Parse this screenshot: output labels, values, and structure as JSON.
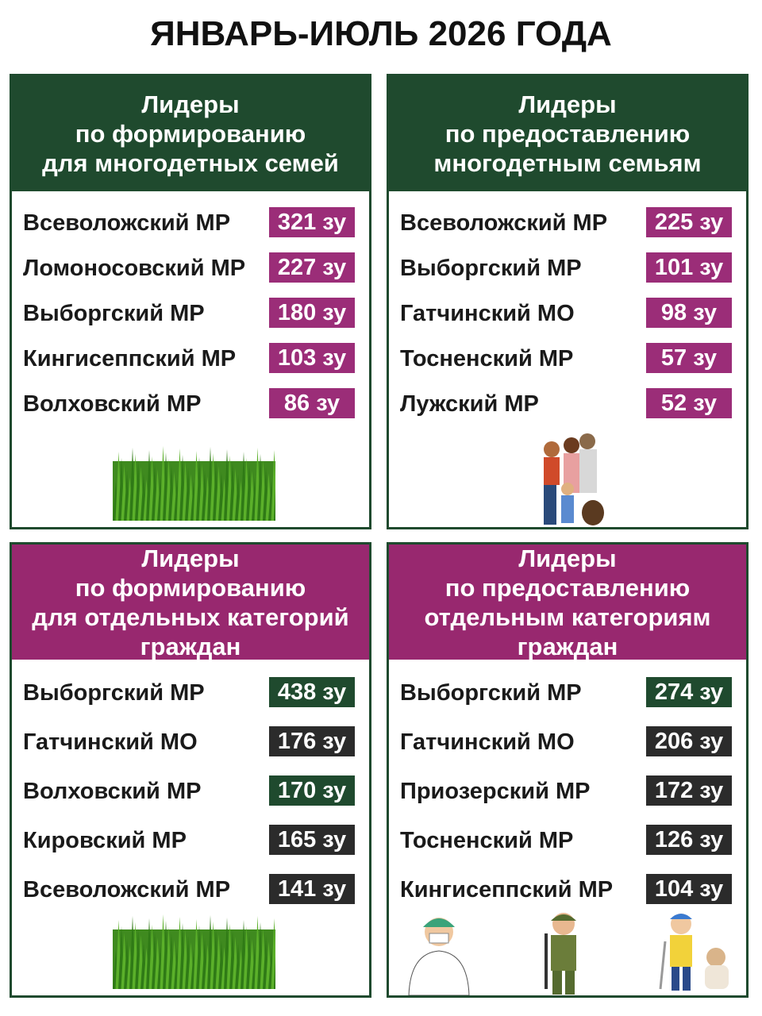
{
  "title": "ЯНВАРЬ-ИЮЛЬ 2026 ГОДА",
  "panels": [
    {
      "header": [
        "Лидеры",
        "по формированию",
        "для многодетных семей"
      ],
      "header_color": "#1f4a2e",
      "rows": [
        {
          "name": "Всеволожский МР",
          "value": "321 зу",
          "color": "#9b2d78"
        },
        {
          "name": "Ломоносовский МР",
          "value": "227 зу",
          "color": "#9b2d78"
        },
        {
          "name": "Выборгский МР",
          "value": "180 зу",
          "color": "#9b2d78"
        },
        {
          "name": "Кингисеппский МР",
          "value": "103 зу",
          "color": "#9b2d78"
        },
        {
          "name": "Волховский МР",
          "value": "86 зу",
          "color": "#9b2d78"
        }
      ]
    },
    {
      "header": [
        "Лидеры",
        "по предоставлению",
        "многодетным семьям"
      ],
      "header_color": "#1f4a2e",
      "rows": [
        {
          "name": "Всеволожский МР",
          "value": "225 зу",
          "color": "#9b2d78"
        },
        {
          "name": "Выборгский МР",
          "value": "101 зу",
          "color": "#9b2d78"
        },
        {
          "name": "Гатчинский МО",
          "value": "98 зу",
          "color": "#9b2d78"
        },
        {
          "name": "Тосненский МР",
          "value": "57 зу",
          "color": "#9b2d78"
        },
        {
          "name": "Лужский МР",
          "value": "52 зу",
          "color": "#9b2d78"
        }
      ]
    },
    {
      "header": [
        "Лидеры",
        "по формированию",
        "для отдельных категорий",
        "граждан"
      ],
      "header_color": "#98286f",
      "rows": [
        {
          "name": "Выборгский МР",
          "value": "438 зу",
          "color": "#1f4a2e"
        },
        {
          "name": "Гатчинский МО",
          "value": "176 зу",
          "color": "#2b2b2b"
        },
        {
          "name": "Волховский МР",
          "value": "170 зу",
          "color": "#1f4a2e"
        },
        {
          "name": "Кировский МР",
          "value": "165 зу",
          "color": "#2b2b2b"
        },
        {
          "name": "Всеволожский МР",
          "value": "141 зу",
          "color": "#2b2b2b"
        }
      ]
    },
    {
      "header": [
        "Лидеры",
        "по предоставлению",
        "отдельным категориям",
        "граждан"
      ],
      "header_color": "#98286f",
      "rows": [
        {
          "name": "Выборгский МР",
          "value": "274 зу",
          "color": "#1f4a2e"
        },
        {
          "name": "Гатчинский МО",
          "value": "206 зу",
          "color": "#2b2b2b"
        },
        {
          "name": "Приозерский МР",
          "value": "172 зу",
          "color": "#2b2b2b"
        },
        {
          "name": "Тосненский МР",
          "value": "126 зу",
          "color": "#2b2b2b"
        },
        {
          "name": "Кингисеппский МР",
          "value": "104 зу",
          "color": "#2b2b2b"
        }
      ]
    }
  ]
}
